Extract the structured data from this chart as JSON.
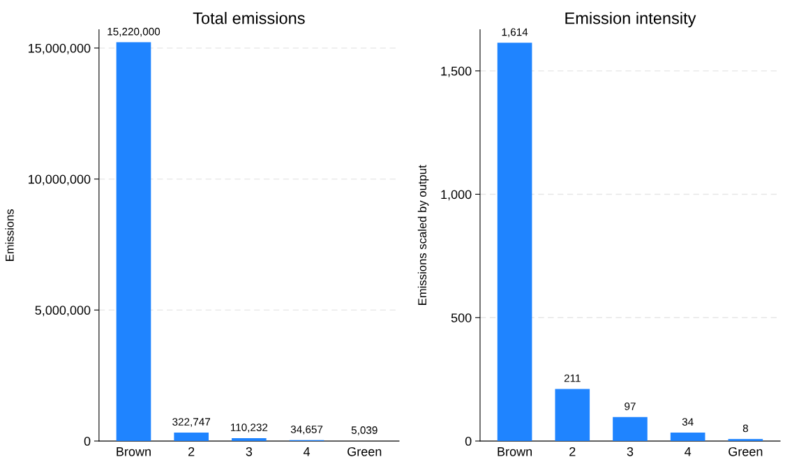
{
  "chart_data": [
    {
      "type": "bar",
      "title": "Total emissions",
      "ylabel": "Emissions",
      "categories": [
        "Brown",
        "2",
        "3",
        "4",
        "Green"
      ],
      "values": [
        15220000,
        322747,
        110232,
        34657,
        5039
      ],
      "color": "#1f84ff",
      "value_labels": [
        "15,220,000",
        "322,747",
        "110,232",
        "34,657",
        "5,039"
      ],
      "ylim": [
        0,
        15700000
      ],
      "yticks": [
        {
          "value": 0,
          "label": "0"
        },
        {
          "value": 5000000,
          "label": "5,000,000"
        },
        {
          "value": 10000000,
          "label": "10,000,000"
        },
        {
          "value": 15000000,
          "label": "15,000,000"
        }
      ],
      "grid": "y",
      "legend": false
    },
    {
      "type": "bar",
      "title": "Emission intensity",
      "ylabel": "Emissions scaled by output",
      "categories": [
        "Brown",
        "2",
        "3",
        "4",
        "Green"
      ],
      "values": [
        1614,
        211,
        97,
        34,
        8
      ],
      "color": "#1f84ff",
      "value_labels": [
        "1,614",
        "211",
        "97",
        "34",
        "8"
      ],
      "ylim": [
        0,
        1667
      ],
      "yticks": [
        {
          "value": 0,
          "label": "0"
        },
        {
          "value": 500,
          "label": "500"
        },
        {
          "value": 1000,
          "label": "1,000"
        },
        {
          "value": 1500,
          "label": "1,500"
        }
      ],
      "grid": "y",
      "legend": false
    }
  ]
}
